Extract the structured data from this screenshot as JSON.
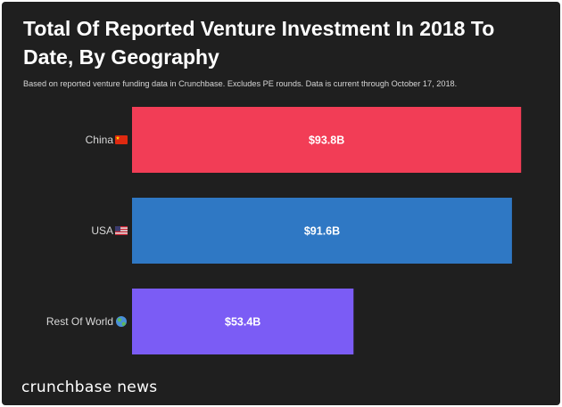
{
  "chart_data": {
    "type": "bar",
    "orientation": "horizontal",
    "title": "Total Of Reported Venture Investment In 2018 To Date, By Geography",
    "subtitle": "Based on reported venture funding data in Crunchbase. Excludes PE rounds.  Data is current through October 17, 2018.",
    "categories": [
      "China",
      "USA",
      "Rest Of World"
    ],
    "category_icons": [
      "china-flag-icon",
      "usa-flag-icon",
      "globe-icon"
    ],
    "values": [
      93.8,
      91.6,
      53.4
    ],
    "value_labels": [
      "$93.8B",
      "$91.6B",
      "$53.4B"
    ],
    "colors": [
      "#f23d56",
      "#2f78c4",
      "#7b5cf5"
    ],
    "unit": "USD billions",
    "xlim": [
      0,
      100
    ],
    "grid": false,
    "legend": "none"
  },
  "branding": {
    "label": "crunchbase news"
  },
  "colors": {
    "background": "#1f1f1f",
    "text": "#ffffff"
  }
}
